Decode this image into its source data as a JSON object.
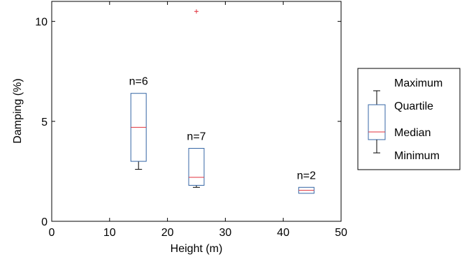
{
  "chart_data": {
    "type": "box",
    "title": "",
    "xlabel": "Height (m)",
    "ylabel": "Damping (%)",
    "xlim": [
      0,
      50
    ],
    "ylim": [
      0,
      11
    ],
    "xticks": [
      0,
      10,
      20,
      30,
      40,
      50
    ],
    "yticks": [
      0,
      5,
      10
    ],
    "grid": false,
    "box_color": "#3465a4",
    "median_color": "#e0323c",
    "outlier_color": "#e0323c",
    "boxes": [
      {
        "x": 15,
        "n_label": "n=6",
        "min": 2.6,
        "q1": 3.0,
        "median": 4.7,
        "q3": 6.4,
        "max": 6.4,
        "outliers": []
      },
      {
        "x": 25,
        "n_label": "n=7",
        "min": 1.7,
        "q1": 1.8,
        "median": 2.2,
        "q3": 3.65,
        "max": 3.65,
        "outliers": [
          10.5
        ]
      },
      {
        "x": 44,
        "n_label": "n=2",
        "min": 1.4,
        "q1": 1.4,
        "median": 1.55,
        "q3": 1.7,
        "max": 1.7,
        "outliers": []
      }
    ],
    "legend": {
      "placement": "right",
      "maximum": "Maximum",
      "quartile": "Quartile",
      "median": "Median",
      "minimum": "Minimum"
    }
  }
}
